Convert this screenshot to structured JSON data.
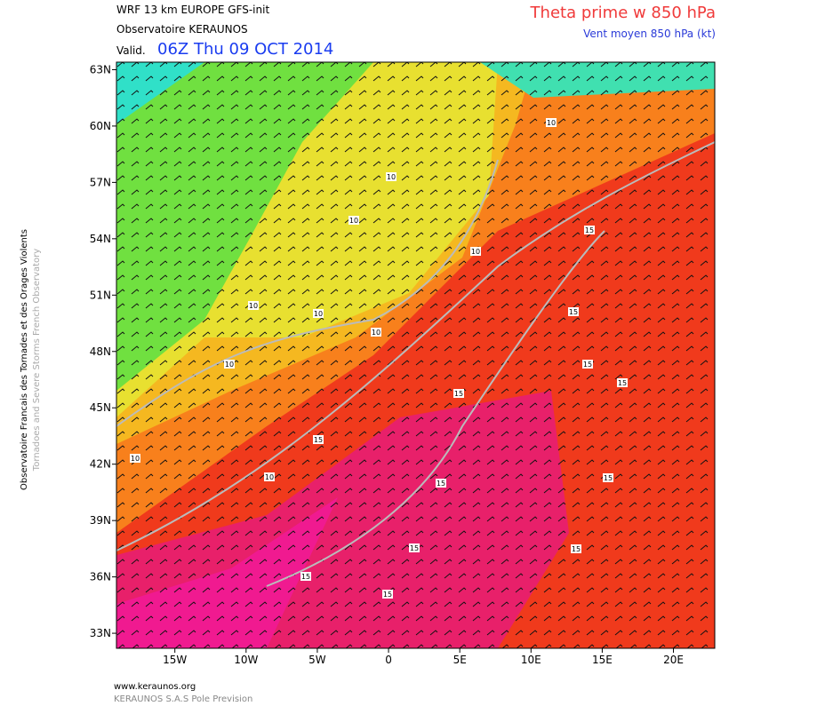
{
  "header": {
    "model": "WRF 13 km EUROPE  GFS-init",
    "observatory": "Observatoire KERAUNOS",
    "valid_prefix": "Valid.",
    "valid_time": "06Z Thu 09 OCT 2014",
    "title": "Theta prime w 850 hPa",
    "subtitle": "Vent moyen 850 hPa (kt)"
  },
  "side": {
    "french": "Observatoire Francais des Tornades et des Orages Violents",
    "english": "Tornadoes and Severe Storms French Observatory"
  },
  "map": {
    "lat_lim": [
      32.2,
      63.4
    ],
    "lon_lim": [
      -19.1,
      22.9
    ],
    "lat_ticks": [
      {
        "value": 63,
        "label": "63N"
      },
      {
        "value": 60,
        "label": "60N"
      },
      {
        "value": 57,
        "label": "57N"
      },
      {
        "value": 54,
        "label": "54N"
      },
      {
        "value": 51,
        "label": "51N"
      },
      {
        "value": 48,
        "label": "48N"
      },
      {
        "value": 45,
        "label": "45N"
      },
      {
        "value": 42,
        "label": "42N"
      },
      {
        "value": 39,
        "label": "39N"
      },
      {
        "value": 36,
        "label": "36N"
      },
      {
        "value": 33,
        "label": "33N"
      }
    ],
    "lon_ticks": [
      {
        "value": -15,
        "label": "15W"
      },
      {
        "value": -10,
        "label": "10W"
      },
      {
        "value": -5,
        "label": "5W"
      },
      {
        "value": 0,
        "label": "0"
      },
      {
        "value": 5,
        "label": "5E"
      },
      {
        "value": 10,
        "label": "10E"
      },
      {
        "value": 15,
        "label": "15E"
      },
      {
        "value": 20,
        "label": "20E"
      }
    ],
    "contour_labels": [
      10,
      10,
      10,
      10,
      10,
      10,
      10,
      10,
      10,
      10,
      15,
      15,
      15,
      15,
      15,
      15,
      15,
      15,
      15,
      15,
      15,
      15
    ]
  },
  "footer": {
    "site": "www.keraunos.org",
    "company": "KERAUNOS S.A.S Pole Prevision"
  }
}
